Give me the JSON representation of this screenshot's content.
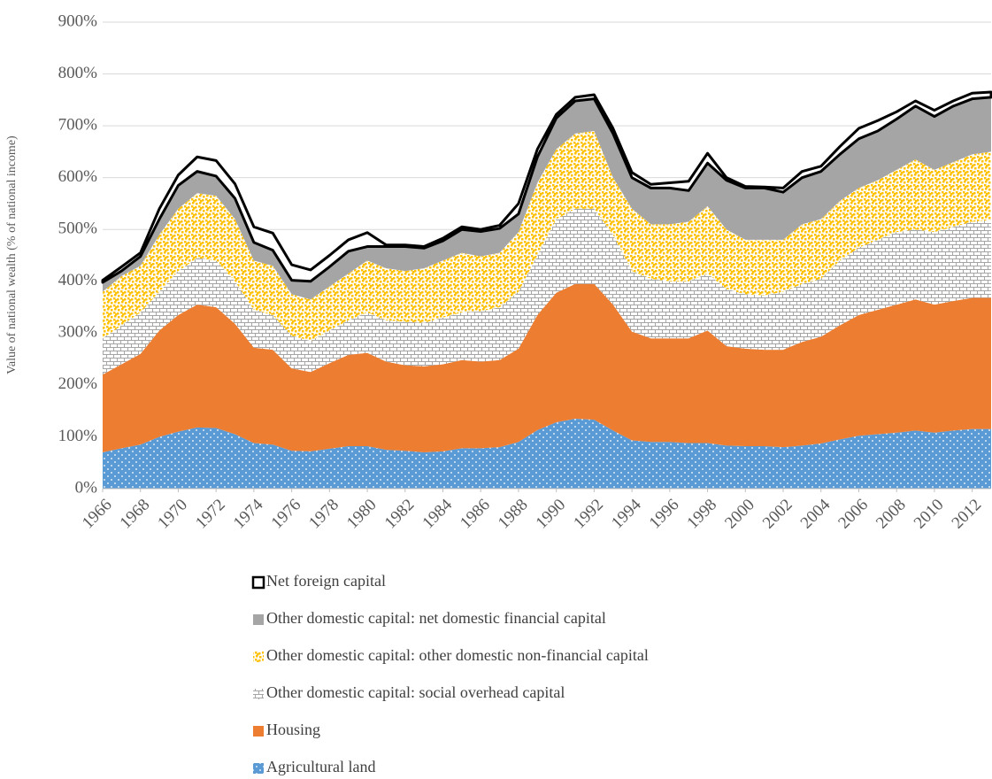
{
  "chart_data": {
    "type": "stacked-area",
    "y_label": "Value of national wealth (% of national income)",
    "x": [
      1966,
      1967,
      1968,
      1969,
      1970,
      1971,
      1972,
      1973,
      1974,
      1975,
      1976,
      1977,
      1978,
      1979,
      1980,
      1981,
      1982,
      1983,
      1984,
      1985,
      1986,
      1987,
      1988,
      1989,
      1990,
      1991,
      1992,
      1993,
      1994,
      1995,
      1996,
      1997,
      1998,
      1999,
      2000,
      2001,
      2002,
      2003,
      2004,
      2005,
      2006,
      2007,
      2008,
      2009,
      2010,
      2011,
      2012,
      2013
    ],
    "xlim": [
      1966,
      2013
    ],
    "xticks": [
      1966,
      1968,
      1970,
      1972,
      1974,
      1976,
      1978,
      1980,
      1982,
      1984,
      1986,
      1988,
      1990,
      1992,
      1994,
      1996,
      1998,
      2000,
      2002,
      2004,
      2006,
      2008,
      2010,
      2012
    ],
    "ylim": [
      0,
      900
    ],
    "yticks": [
      {
        "value": 0,
        "label": "0%"
      },
      {
        "value": 100,
        "label": "100%"
      },
      {
        "value": 200,
        "label": "200%"
      },
      {
        "value": 300,
        "label": "300%"
      },
      {
        "value": 400,
        "label": "400%"
      },
      {
        "value": 500,
        "label": "500%"
      },
      {
        "value": 600,
        "label": "600%"
      },
      {
        "value": 700,
        "label": "700%"
      },
      {
        "value": 800,
        "label": "800%"
      },
      {
        "value": 900,
        "label": "900%"
      }
    ],
    "grid": true,
    "legend": "bottom",
    "series": [
      {
        "name": "Agricultural land",
        "color": "#5b9bd5",
        "pattern": "dots",
        "values": [
          70,
          78,
          85,
          100,
          110,
          118,
          117,
          105,
          88,
          85,
          73,
          72,
          77,
          82,
          82,
          75,
          73,
          70,
          72,
          78,
          78,
          80,
          90,
          113,
          128,
          135,
          133,
          112,
          93,
          90,
          90,
          88,
          88,
          83,
          82,
          82,
          80,
          83,
          87,
          95,
          102,
          105,
          108,
          112,
          108,
          112,
          115,
          115
        ]
      },
      {
        "name": "Housing",
        "color": "#ed7d31",
        "pattern": "solid",
        "values": [
          150,
          162,
          175,
          205,
          225,
          237,
          233,
          213,
          184,
          183,
          159,
          153,
          165,
          176,
          180,
          170,
          165,
          166,
          168,
          170,
          167,
          168,
          180,
          222,
          250,
          260,
          262,
          243,
          210,
          200,
          200,
          202,
          217,
          192,
          188,
          186,
          188,
          200,
          206,
          220,
          233,
          240,
          247,
          253,
          247,
          250,
          253,
          253
        ]
      },
      {
        "name": "Other domestic capital: social overhead capital",
        "color": "#a5a5a5",
        "pattern": "bricks",
        "values": [
          70,
          75,
          80,
          75,
          85,
          90,
          90,
          82,
          73,
          67,
          63,
          60,
          63,
          67,
          78,
          80,
          84,
          84,
          90,
          92,
          97,
          102,
          110,
          115,
          142,
          145,
          145,
          135,
          117,
          115,
          110,
          110,
          110,
          110,
          105,
          105,
          112,
          112,
          112,
          125,
          130,
          135,
          140,
          135,
          140,
          143,
          147,
          150
        ]
      },
      {
        "name": "Other domestic capital: other domestic non-financial capital",
        "color": "#ffc000",
        "pattern": "confetti",
        "values": [
          90,
          95,
          90,
          110,
          120,
          125,
          125,
          120,
          95,
          95,
          80,
          80,
          85,
          90,
          100,
          100,
          98,
          105,
          110,
          115,
          106,
          105,
          115,
          140,
          135,
          145,
          150,
          110,
          120,
          105,
          110,
          115,
          130,
          115,
          105,
          107,
          100,
          115,
          115,
          115,
          115,
          115,
          120,
          135,
          120,
          125,
          130,
          132
        ]
      },
      {
        "name": "Other domestic capital: net domestic financial capital",
        "color": "#a5a5a5",
        "pattern": "solid",
        "values": [
          18,
          10,
          18,
          30,
          45,
          42,
          38,
          40,
          35,
          30,
          27,
          35,
          38,
          43,
          27,
          42,
          47,
          39,
          38,
          45,
          48,
          47,
          35,
          50,
          60,
          63,
          62,
          85,
          60,
          70,
          70,
          60,
          83,
          95,
          100,
          100,
          92,
          90,
          92,
          90,
          95,
          95,
          98,
          103,
          103,
          108,
          107,
          105
        ]
      },
      {
        "name": "Net foreign capital",
        "color": "#000000",
        "pattern": "outline",
        "values": [
          4,
          8,
          7,
          20,
          20,
          28,
          30,
          28,
          30,
          33,
          30,
          22,
          22,
          22,
          27,
          3,
          3,
          3,
          5,
          5,
          4,
          6,
          20,
          15,
          7,
          7,
          8,
          10,
          10,
          7,
          10,
          18,
          19,
          5,
          3,
          2,
          8,
          12,
          10,
          15,
          20,
          20,
          14,
          10,
          12,
          10,
          11,
          10
        ]
      }
    ]
  }
}
